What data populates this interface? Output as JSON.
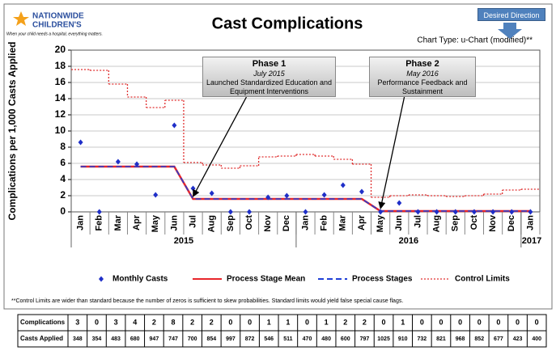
{
  "chart_data": {
    "type": "control",
    "title": "Cast Complications",
    "subtitle": "Chart Type: u-Chart (modified)**",
    "logo": {
      "name": "NATIONWIDE",
      "name2": "CHILDREN'S",
      "tagline": "When your child needs a hospital, everything matters."
    },
    "direction_label": "Desired Direction",
    "ylabel": "Complications per 1,000 Casts Applied",
    "categories": [
      "Jan",
      "Feb",
      "Mar",
      "Apr",
      "May",
      "Jun",
      "Jul",
      "Aug",
      "Sep",
      "Oct",
      "Nov",
      "Dec",
      "Jan",
      "Feb",
      "Mar",
      "Apr",
      "May",
      "Jun",
      "Jul",
      "Aug",
      "Sep",
      "Oct",
      "Nov",
      "Dec",
      "Jan"
    ],
    "x_groups": [
      {
        "label": "2015",
        "count": 12
      },
      {
        "label": "2016",
        "count": 12
      },
      {
        "label": "2017",
        "count": 1
      }
    ],
    "series": [
      {
        "name": "Monthly Casts",
        "color": "#1f2fc8",
        "style": "points",
        "values": [
          8.6,
          0,
          6.2,
          5.9,
          2.1,
          10.7,
          2.9,
          2.3,
          0,
          0,
          1.8,
          2.0,
          0,
          2.1,
          3.3,
          2.5,
          0,
          1.1,
          0,
          0,
          0,
          0,
          0,
          0,
          0
        ]
      },
      {
        "name": "Process Stage Mean",
        "color": "#e8262b",
        "style": "solid",
        "values": [
          5.6,
          5.6,
          5.6,
          5.6,
          5.6,
          5.6,
          1.6,
          1.6,
          1.6,
          1.6,
          1.6,
          1.6,
          1.6,
          1.6,
          1.6,
          1.6,
          0.1,
          0.1,
          0.1,
          0.1,
          0.1,
          0.1,
          0.1,
          0.1,
          0.1
        ]
      },
      {
        "name": "Process Stages",
        "color": "#1f3fd6",
        "style": "dashed",
        "values": [
          5.6,
          5.6,
          5.6,
          5.6,
          5.6,
          5.6,
          1.6,
          1.6,
          1.6,
          1.6,
          1.6,
          1.6,
          1.6,
          1.6,
          1.6,
          1.6,
          0.1,
          0.1,
          0.1,
          0.1,
          0.1,
          0.1,
          0.1,
          0.1,
          0.1
        ]
      },
      {
        "name": "Control Limits",
        "color": "#e03030",
        "style": "step",
        "values": [
          17.6,
          17.5,
          15.8,
          14.2,
          12.9,
          13.8,
          6.1,
          5.8,
          5.4,
          5.7,
          6.8,
          6.9,
          7.1,
          6.9,
          6.5,
          5.9,
          1.8,
          2.0,
          2.1,
          2.0,
          1.9,
          2.0,
          2.2,
          2.7,
          2.8
        ]
      }
    ],
    "ylim": [
      0,
      20
    ],
    "yticks": [
      0,
      2,
      4,
      6,
      8,
      10,
      12,
      14,
      16,
      18,
      20
    ],
    "grid": true,
    "annotations": [
      {
        "title": "Phase 1",
        "date": "July 2015",
        "text": "Launched Standardized Education and Equipment Interventions",
        "category": 6,
        "series": 2
      },
      {
        "title": "Phase 2",
        "date": "May 2016",
        "text": "Performance Feedback and Sustainment",
        "category": 16,
        "series": 2
      }
    ],
    "footnote": "**Control Limits are wider than standard because the number of zeros is sufficient to skew probabilities. Standard limits would yield false special cause flags.",
    "table": {
      "rows": [
        {
          "label": "Complications",
          "values": [
            3,
            0,
            3,
            4,
            2,
            8,
            2,
            2,
            0,
            0,
            1,
            1,
            0,
            1,
            2,
            2,
            0,
            1,
            0,
            0,
            0,
            0,
            0,
            0,
            0
          ]
        },
        {
          "label": "Casts Applied",
          "values": [
            348,
            354,
            483,
            680,
            947,
            747,
            700,
            854,
            997,
            872,
            546,
            511,
            470,
            480,
            600,
            797,
            1025,
            910,
            732,
            821,
            968,
            852,
            677,
            423,
            400
          ]
        }
      ]
    }
  }
}
